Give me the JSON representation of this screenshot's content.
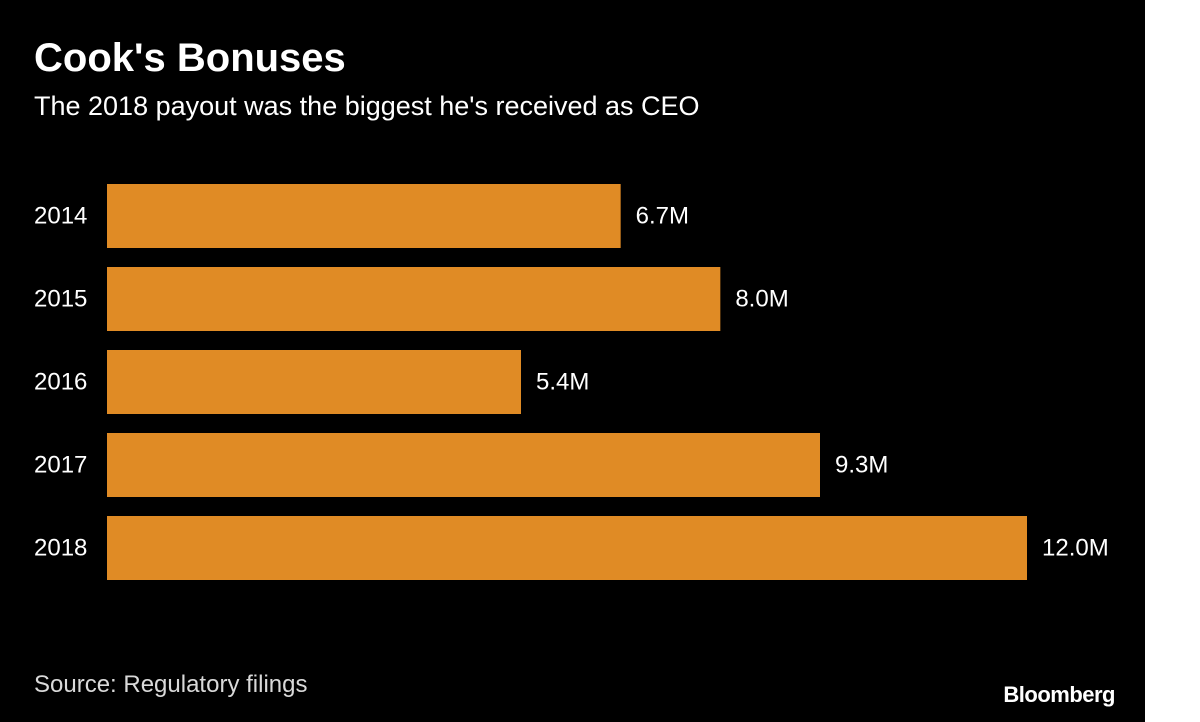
{
  "chart_data": {
    "type": "bar",
    "orientation": "horizontal",
    "title": "Cook's Bonuses",
    "subtitle": "The 2018 payout was the biggest he's received as CEO",
    "categories": [
      "2014",
      "2015",
      "2016",
      "2017",
      "2018"
    ],
    "values": [
      6.7,
      8.0,
      5.4,
      9.3,
      12.0
    ],
    "value_labels": [
      "6.7M",
      "8.0M",
      "5.4M",
      "9.3M",
      "12.0M"
    ],
    "unit": "M",
    "xlim": [
      0,
      12.0
    ],
    "grid": false,
    "legend": "none",
    "bar_color": "#e08b25",
    "source": "Source: Regulatory filings"
  },
  "branding": {
    "logo_text": "Bloomberg"
  },
  "colors": {
    "background": "#000000",
    "text": "#ffffff",
    "muted_text": "#d9d9d9",
    "bar": "#e08b25"
  }
}
